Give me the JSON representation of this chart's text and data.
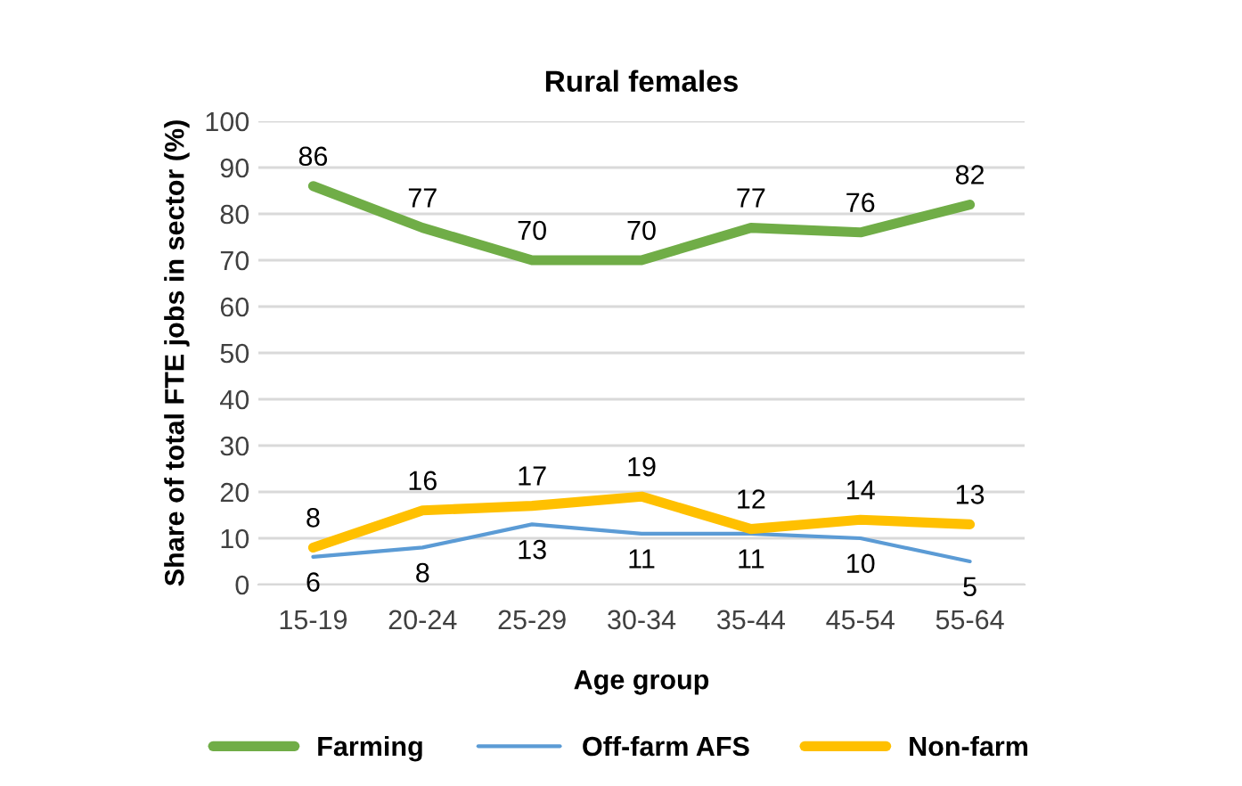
{
  "chart_data": {
    "type": "line",
    "title": "Rural females",
    "xlabel": "Age group",
    "ylabel": "Share of total FTE jobs in sector (%)",
    "categories": [
      "15-19",
      "20-24",
      "25-29",
      "30-34",
      "35-44",
      "45-54",
      "55-64"
    ],
    "series": [
      {
        "name": "Farming",
        "color": "#70ad47",
        "values": [
          86,
          77,
          70,
          70,
          77,
          76,
          82
        ]
      },
      {
        "name": "Off-farm AFS",
        "color": "#5b9bd5",
        "values": [
          6,
          8,
          13,
          11,
          11,
          10,
          5
        ]
      },
      {
        "name": "Non-farm",
        "color": "#ffc000",
        "values": [
          8,
          16,
          17,
          19,
          12,
          14,
          13
        ]
      }
    ],
    "ylim": [
      0,
      100
    ],
    "yticks": [
      0,
      10,
      20,
      30,
      40,
      50,
      60,
      70,
      80,
      90,
      100
    ],
    "grid": "y",
    "legend": "bottom",
    "data_labels": true,
    "marker": "none",
    "line_style": "solid"
  }
}
